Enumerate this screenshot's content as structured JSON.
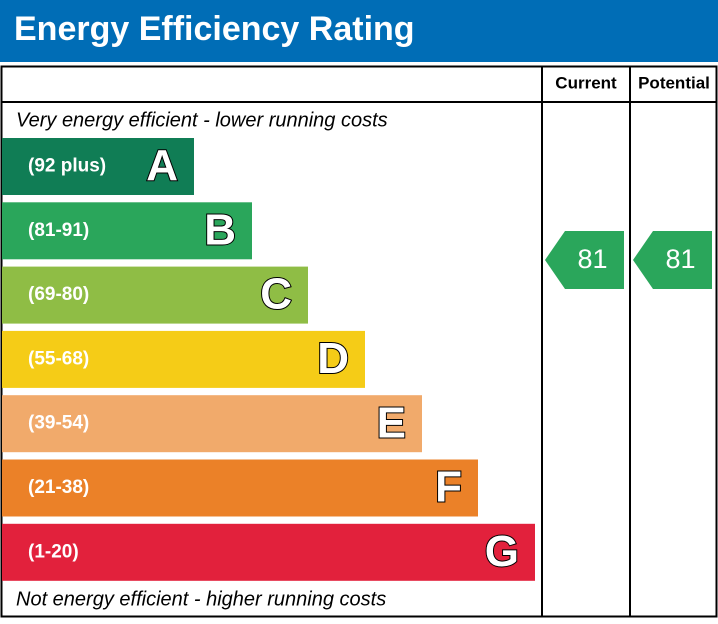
{
  "header": {
    "title": "Energy Efficiency Rating"
  },
  "columns": [
    "Current",
    "Potential"
  ],
  "top_note": "Very energy efficient - lower running costs",
  "bottom_note": "Not energy efficient - higher running costs",
  "bands": [
    {
      "range": "(92 plus)",
      "letter": "A",
      "color": "#107d55"
    },
    {
      "range": "(81-91)",
      "letter": "B",
      "color": "#2aa65b"
    },
    {
      "range": "(69-80)",
      "letter": "C",
      "color": "#8fbd45"
    },
    {
      "range": "(55-68)",
      "letter": "D",
      "color": "#f5cc17"
    },
    {
      "range": "(39-54)",
      "letter": "E",
      "color": "#f1aa6b"
    },
    {
      "range": "(21-38)",
      "letter": "F",
      "color": "#eb8128"
    },
    {
      "range": "(1-20)",
      "letter": "G",
      "color": "#e2213c"
    }
  ],
  "current": {
    "value": 81,
    "color": "#2aa65b"
  },
  "potential": {
    "value": 81,
    "color": "#2aa65b"
  }
}
